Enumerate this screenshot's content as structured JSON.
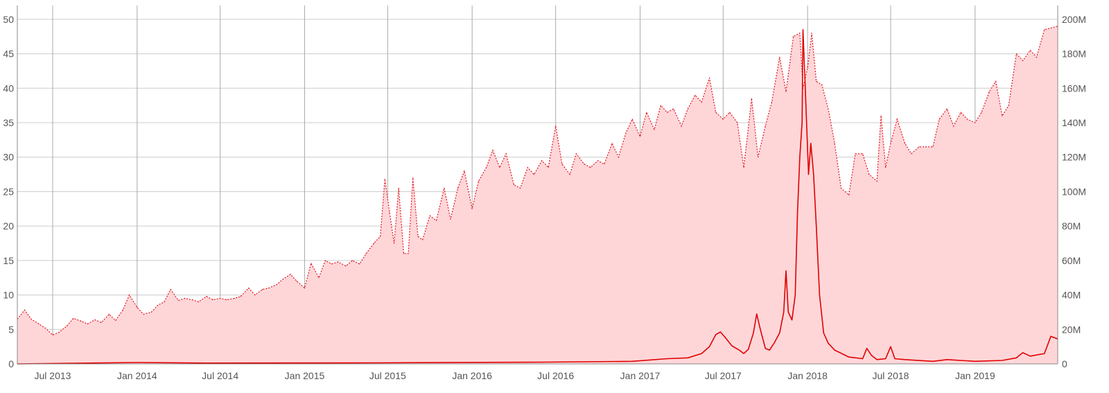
{
  "chart_data": {
    "type": "area",
    "title": "",
    "xlabel": "",
    "ylabel_left": "",
    "ylabel_right": "",
    "grid": true,
    "legend": "none",
    "colors": {
      "area_fill": "#ffd6d8",
      "dotted_line": "#e0141e",
      "solid_line": "#e00000",
      "grid": "#cccccc",
      "axis_text": "#555555"
    },
    "x_range": [
      "2013-04-15",
      "2019-06-30"
    ],
    "y_left_range": [
      0,
      52
    ],
    "y_right_range": [
      0,
      208000000
    ],
    "x_ticks": [
      {
        "date": "2013-07-01",
        "label": "Jul 2013"
      },
      {
        "date": "2014-01-01",
        "label": "Jan 2014"
      },
      {
        "date": "2014-07-01",
        "label": "Jul 2014"
      },
      {
        "date": "2015-01-01",
        "label": "Jan 2015"
      },
      {
        "date": "2015-07-01",
        "label": "Jul 2015"
      },
      {
        "date": "2016-01-01",
        "label": "Jan 2016"
      },
      {
        "date": "2016-07-01",
        "label": "Jul 2016"
      },
      {
        "date": "2017-01-01",
        "label": "Jan 2017"
      },
      {
        "date": "2017-07-01",
        "label": "Jul 2017"
      },
      {
        "date": "2018-01-01",
        "label": "Jan 2018"
      },
      {
        "date": "2018-07-01",
        "label": "Jul 2018"
      },
      {
        "date": "2019-01-01",
        "label": "Jan 2019"
      }
    ],
    "y_left_ticks": [
      {
        "value": 0,
        "label": "0"
      },
      {
        "value": 5,
        "label": "5"
      },
      {
        "value": 10,
        "label": "10"
      },
      {
        "value": 15,
        "label": "15"
      },
      {
        "value": 20,
        "label": "20"
      },
      {
        "value": 25,
        "label": "25"
      },
      {
        "value": 30,
        "label": "30"
      },
      {
        "value": 35,
        "label": "35"
      },
      {
        "value": 40,
        "label": "40"
      },
      {
        "value": 45,
        "label": "45"
      },
      {
        "value": 50,
        "label": "50"
      }
    ],
    "y_right_ticks": [
      {
        "value": 0,
        "label": "0"
      },
      {
        "value": 20000000,
        "label": "20M"
      },
      {
        "value": 40000000,
        "label": "40M"
      },
      {
        "value": 60000000,
        "label": "60M"
      },
      {
        "value": 80000000,
        "label": "80M"
      },
      {
        "value": 100000000,
        "label": "100M"
      },
      {
        "value": 120000000,
        "label": "120M"
      },
      {
        "value": 140000000,
        "label": "140M"
      },
      {
        "value": 160000000,
        "label": "160M"
      },
      {
        "value": 180000000,
        "label": "180M"
      },
      {
        "value": 200000000,
        "label": "200M"
      }
    ],
    "series": [
      {
        "axis": "left",
        "style": "dotted-area",
        "points": [
          [
            "2013-04-15",
            6.5
          ],
          [
            "2013-05-01",
            7.8
          ],
          [
            "2013-05-15",
            6.5
          ],
          [
            "2013-06-01",
            5.8
          ],
          [
            "2013-06-15",
            5.2
          ],
          [
            "2013-07-01",
            4.2
          ],
          [
            "2013-07-15",
            4.6
          ],
          [
            "2013-08-01",
            5.5
          ],
          [
            "2013-08-15",
            6.6
          ],
          [
            "2013-09-01",
            6.2
          ],
          [
            "2013-09-15",
            5.8
          ],
          [
            "2013-10-01",
            6.4
          ],
          [
            "2013-10-15",
            6.0
          ],
          [
            "2013-11-01",
            7.2
          ],
          [
            "2013-11-15",
            6.3
          ],
          [
            "2013-12-01",
            7.8
          ],
          [
            "2013-12-15",
            10.0
          ],
          [
            "2014-01-01",
            8.2
          ],
          [
            "2014-01-15",
            7.2
          ],
          [
            "2014-02-01",
            7.5
          ],
          [
            "2014-02-15",
            8.5
          ],
          [
            "2014-03-01",
            9.0
          ],
          [
            "2014-03-15",
            10.8
          ],
          [
            "2014-04-01",
            9.2
          ],
          [
            "2014-04-15",
            9.5
          ],
          [
            "2014-05-01",
            9.3
          ],
          [
            "2014-05-15",
            9.0
          ],
          [
            "2014-06-01",
            9.8
          ],
          [
            "2014-06-15",
            9.3
          ],
          [
            "2014-07-01",
            9.5
          ],
          [
            "2014-07-15",
            9.3
          ],
          [
            "2014-08-01",
            9.5
          ],
          [
            "2014-08-15",
            9.8
          ],
          [
            "2014-09-01",
            11.0
          ],
          [
            "2014-09-15",
            10.0
          ],
          [
            "2014-10-01",
            10.8
          ],
          [
            "2014-10-15",
            11.0
          ],
          [
            "2014-11-01",
            11.5
          ],
          [
            "2014-11-15",
            12.3
          ],
          [
            "2014-12-01",
            13.0
          ],
          [
            "2014-12-15",
            12.0
          ],
          [
            "2015-01-01",
            11.0
          ],
          [
            "2015-01-15",
            14.6
          ],
          [
            "2015-02-01",
            12.5
          ],
          [
            "2015-02-15",
            15.0
          ],
          [
            "2015-03-01",
            14.5
          ],
          [
            "2015-03-15",
            14.8
          ],
          [
            "2015-04-01",
            14.2
          ],
          [
            "2015-04-15",
            15.0
          ],
          [
            "2015-05-01",
            14.5
          ],
          [
            "2015-05-15",
            16.0
          ],
          [
            "2015-06-01",
            17.5
          ],
          [
            "2015-06-15",
            18.5
          ],
          [
            "2015-06-25",
            26.8
          ],
          [
            "2015-07-05",
            22.0
          ],
          [
            "2015-07-15",
            17.5
          ],
          [
            "2015-07-25",
            25.5
          ],
          [
            "2015-08-05",
            16.0
          ],
          [
            "2015-08-15",
            16.0
          ],
          [
            "2015-08-25",
            27.0
          ],
          [
            "2015-09-05",
            18.5
          ],
          [
            "2015-09-15",
            18.0
          ],
          [
            "2015-10-01",
            21.5
          ],
          [
            "2015-10-15",
            20.8
          ],
          [
            "2015-11-01",
            25.5
          ],
          [
            "2015-11-15",
            21.0
          ],
          [
            "2015-12-01",
            25.5
          ],
          [
            "2015-12-15",
            28.0
          ],
          [
            "2016-01-01",
            22.5
          ],
          [
            "2016-01-15",
            26.5
          ],
          [
            "2016-02-01",
            28.5
          ],
          [
            "2016-02-15",
            31.0
          ],
          [
            "2016-03-01",
            28.5
          ],
          [
            "2016-03-15",
            30.5
          ],
          [
            "2016-04-01",
            26.0
          ],
          [
            "2016-04-15",
            25.5
          ],
          [
            "2016-05-01",
            28.5
          ],
          [
            "2016-05-15",
            27.5
          ],
          [
            "2016-06-01",
            29.5
          ],
          [
            "2016-06-15",
            28.5
          ],
          [
            "2016-07-01",
            34.5
          ],
          [
            "2016-07-15",
            29.0
          ],
          [
            "2016-08-01",
            27.5
          ],
          [
            "2016-08-15",
            30.5
          ],
          [
            "2016-09-01",
            29.0
          ],
          [
            "2016-09-15",
            28.5
          ],
          [
            "2016-10-01",
            29.5
          ],
          [
            "2016-10-15",
            29.0
          ],
          [
            "2016-11-01",
            32.0
          ],
          [
            "2016-11-15",
            30.0
          ],
          [
            "2016-12-01",
            33.5
          ],
          [
            "2016-12-15",
            35.5
          ],
          [
            "2017-01-01",
            33.0
          ],
          [
            "2017-01-15",
            36.5
          ],
          [
            "2017-02-01",
            34.0
          ],
          [
            "2017-02-15",
            37.5
          ],
          [
            "2017-03-01",
            36.5
          ],
          [
            "2017-03-15",
            37.0
          ],
          [
            "2017-04-01",
            34.5
          ],
          [
            "2017-04-15",
            37.0
          ],
          [
            "2017-05-01",
            39.0
          ],
          [
            "2017-05-15",
            38.0
          ],
          [
            "2017-06-01",
            41.5
          ],
          [
            "2017-06-15",
            36.5
          ],
          [
            "2017-07-01",
            35.5
          ],
          [
            "2017-07-15",
            36.5
          ],
          [
            "2017-08-01",
            35.0
          ],
          [
            "2017-08-15",
            28.5
          ],
          [
            "2017-09-01",
            38.5
          ],
          [
            "2017-09-15",
            30.0
          ],
          [
            "2017-10-01",
            34.5
          ],
          [
            "2017-10-15",
            38.0
          ],
          [
            "2017-11-01",
            44.5
          ],
          [
            "2017-11-15",
            39.5
          ],
          [
            "2017-12-01",
            47.5
          ],
          [
            "2017-12-15",
            48.0
          ],
          [
            "2017-12-22",
            40.0
          ],
          [
            "2018-01-01",
            43.0
          ],
          [
            "2018-01-10",
            48.0
          ],
          [
            "2018-01-20",
            41.0
          ],
          [
            "2018-02-01",
            40.5
          ],
          [
            "2018-02-15",
            37.0
          ],
          [
            "2018-03-01",
            32.0
          ],
          [
            "2018-03-15",
            25.5
          ],
          [
            "2018-04-01",
            24.5
          ],
          [
            "2018-04-15",
            30.5
          ],
          [
            "2018-05-01",
            30.5
          ],
          [
            "2018-05-15",
            27.5
          ],
          [
            "2018-06-01",
            26.5
          ],
          [
            "2018-06-10",
            36.0
          ],
          [
            "2018-06-20",
            28.5
          ],
          [
            "2018-07-01",
            32.0
          ],
          [
            "2018-07-15",
            35.5
          ],
          [
            "2018-08-01",
            32.0
          ],
          [
            "2018-08-15",
            30.5
          ],
          [
            "2018-09-01",
            31.5
          ],
          [
            "2018-09-15",
            31.5
          ],
          [
            "2018-10-01",
            31.5
          ],
          [
            "2018-10-15",
            35.5
          ],
          [
            "2018-11-01",
            37.0
          ],
          [
            "2018-11-15",
            34.5
          ],
          [
            "2018-12-01",
            36.5
          ],
          [
            "2018-12-15",
            35.5
          ],
          [
            "2019-01-01",
            35.0
          ],
          [
            "2019-01-15",
            36.5
          ],
          [
            "2019-02-01",
            39.5
          ],
          [
            "2019-02-15",
            41.0
          ],
          [
            "2019-03-01",
            36.0
          ],
          [
            "2019-03-15",
            37.5
          ],
          [
            "2019-04-01",
            45.0
          ],
          [
            "2019-04-15",
            44.0
          ],
          [
            "2019-05-01",
            45.5
          ],
          [
            "2019-05-15",
            44.5
          ],
          [
            "2019-06-01",
            48.5
          ],
          [
            "2019-06-30",
            49.0
          ]
        ]
      },
      {
        "axis": "right",
        "style": "solid-line",
        "points": [
          [
            "2013-04-15",
            0
          ],
          [
            "2014-01-01",
            800000
          ],
          [
            "2014-06-01",
            500000
          ],
          [
            "2015-06-01",
            600000
          ],
          [
            "2016-06-01",
            1000000
          ],
          [
            "2016-12-15",
            1500000
          ],
          [
            "2017-03-01",
            3000000
          ],
          [
            "2017-04-15",
            3500000
          ],
          [
            "2017-05-15",
            6000000
          ],
          [
            "2017-06-01",
            10000000
          ],
          [
            "2017-06-15",
            17000000
          ],
          [
            "2017-06-25",
            18500000
          ],
          [
            "2017-07-05",
            15500000
          ],
          [
            "2017-07-20",
            10500000
          ],
          [
            "2017-08-05",
            8000000
          ],
          [
            "2017-08-15",
            6000000
          ],
          [
            "2017-08-25",
            8500000
          ],
          [
            "2017-09-05",
            18000000
          ],
          [
            "2017-09-12",
            29000000
          ],
          [
            "2017-09-20",
            20000000
          ],
          [
            "2017-10-01",
            9000000
          ],
          [
            "2017-10-10",
            8000000
          ],
          [
            "2017-10-20",
            12000000
          ],
          [
            "2017-11-01",
            18000000
          ],
          [
            "2017-11-10",
            30000000
          ],
          [
            "2017-11-15",
            54000000
          ],
          [
            "2017-11-20",
            30000000
          ],
          [
            "2017-11-28",
            25500000
          ],
          [
            "2017-12-05",
            40000000
          ],
          [
            "2017-12-10",
            88000000
          ],
          [
            "2017-12-15",
            120000000
          ],
          [
            "2017-12-20",
            140000000
          ],
          [
            "2017-12-22",
            194000000
          ],
          [
            "2017-12-27",
            160000000
          ],
          [
            "2018-01-03",
            110000000
          ],
          [
            "2018-01-08",
            128000000
          ],
          [
            "2018-01-14",
            110000000
          ],
          [
            "2018-01-20",
            80000000
          ],
          [
            "2018-01-27",
            40000000
          ],
          [
            "2018-02-05",
            18000000
          ],
          [
            "2018-02-15",
            12000000
          ],
          [
            "2018-03-01",
            8000000
          ],
          [
            "2018-04-01",
            4000000
          ],
          [
            "2018-05-01",
            3000000
          ],
          [
            "2018-05-10",
            9000000
          ],
          [
            "2018-05-20",
            5000000
          ],
          [
            "2018-06-01",
            2500000
          ],
          [
            "2018-06-20",
            3000000
          ],
          [
            "2018-07-01",
            10000000
          ],
          [
            "2018-07-10",
            3000000
          ],
          [
            "2018-08-01",
            2500000
          ],
          [
            "2018-10-01",
            1500000
          ],
          [
            "2018-11-01",
            2500000
          ],
          [
            "2019-01-01",
            1500000
          ],
          [
            "2019-03-01",
            2000000
          ],
          [
            "2019-04-01",
            3500000
          ],
          [
            "2019-04-15",
            6500000
          ],
          [
            "2019-05-01",
            4500000
          ],
          [
            "2019-06-01",
            6000000
          ],
          [
            "2019-06-15",
            16000000
          ],
          [
            "2019-06-30",
            14500000
          ]
        ]
      }
    ]
  }
}
